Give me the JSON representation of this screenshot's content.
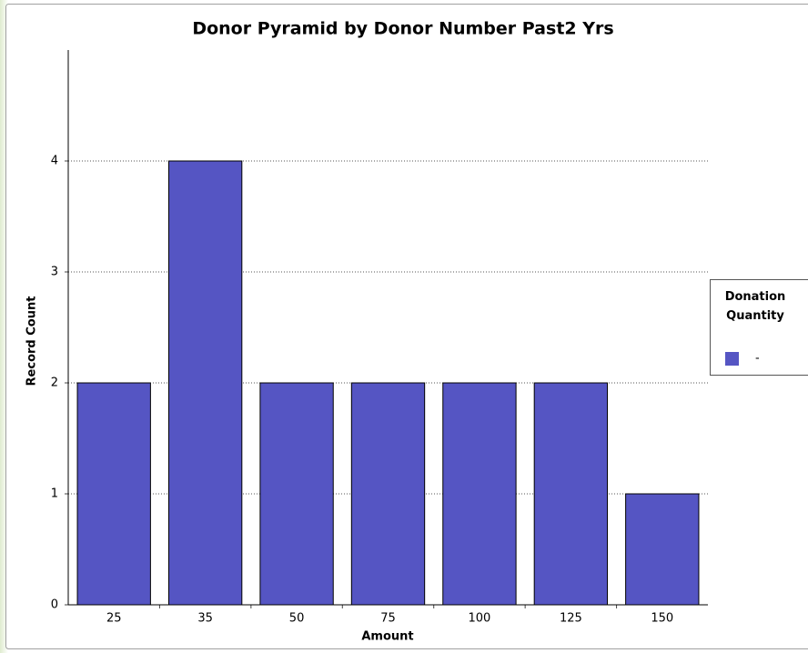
{
  "chart_data": {
    "type": "bar",
    "title": "Donor Pyramid by Donor Number Past2 Yrs",
    "x_label": "Amount",
    "y_label": "Record Count",
    "categories": [
      "25",
      "35",
      "50",
      "75",
      "100",
      "125",
      "150"
    ],
    "series": [
      {
        "name": "-",
        "color": "#5555c3",
        "values": [
          2,
          4,
          2,
          2,
          2,
          2,
          1
        ]
      }
    ],
    "legend_title": "Donation Quantity",
    "legend_position": "right",
    "ylim": [
      0,
      5
    ],
    "yticks": [
      0,
      1,
      2,
      3,
      4
    ],
    "grid": true
  }
}
